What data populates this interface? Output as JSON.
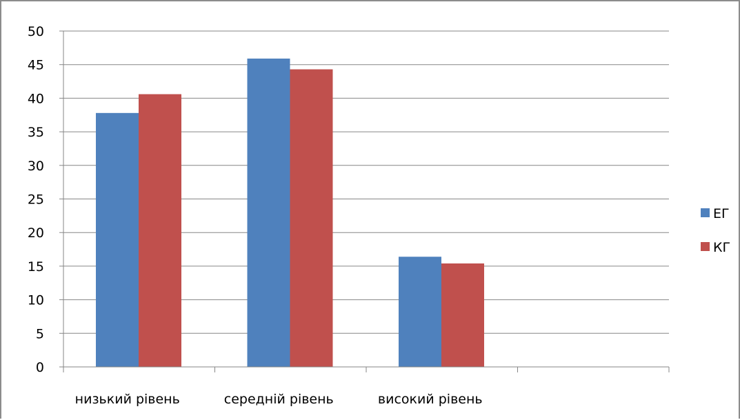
{
  "chart_data": {
    "type": "bar",
    "categories": [
      "низький рівень",
      "середній рівень",
      "високий рівень",
      ""
    ],
    "series": [
      {
        "name": "ЕГ",
        "color": "#4f81bd",
        "values": [
          37.8,
          45.9,
          16.4,
          null
        ]
      },
      {
        "name": "КГ",
        "color": "#c0504d",
        "values": [
          40.6,
          44.3,
          15.4,
          null
        ]
      }
    ],
    "ylim": [
      0,
      50
    ],
    "yticks": [
      0,
      5,
      10,
      15,
      20,
      25,
      30,
      35,
      40,
      45,
      50
    ],
    "grid": true,
    "legend_position": "right",
    "title": "",
    "xlabel": "",
    "ylabel": ""
  }
}
